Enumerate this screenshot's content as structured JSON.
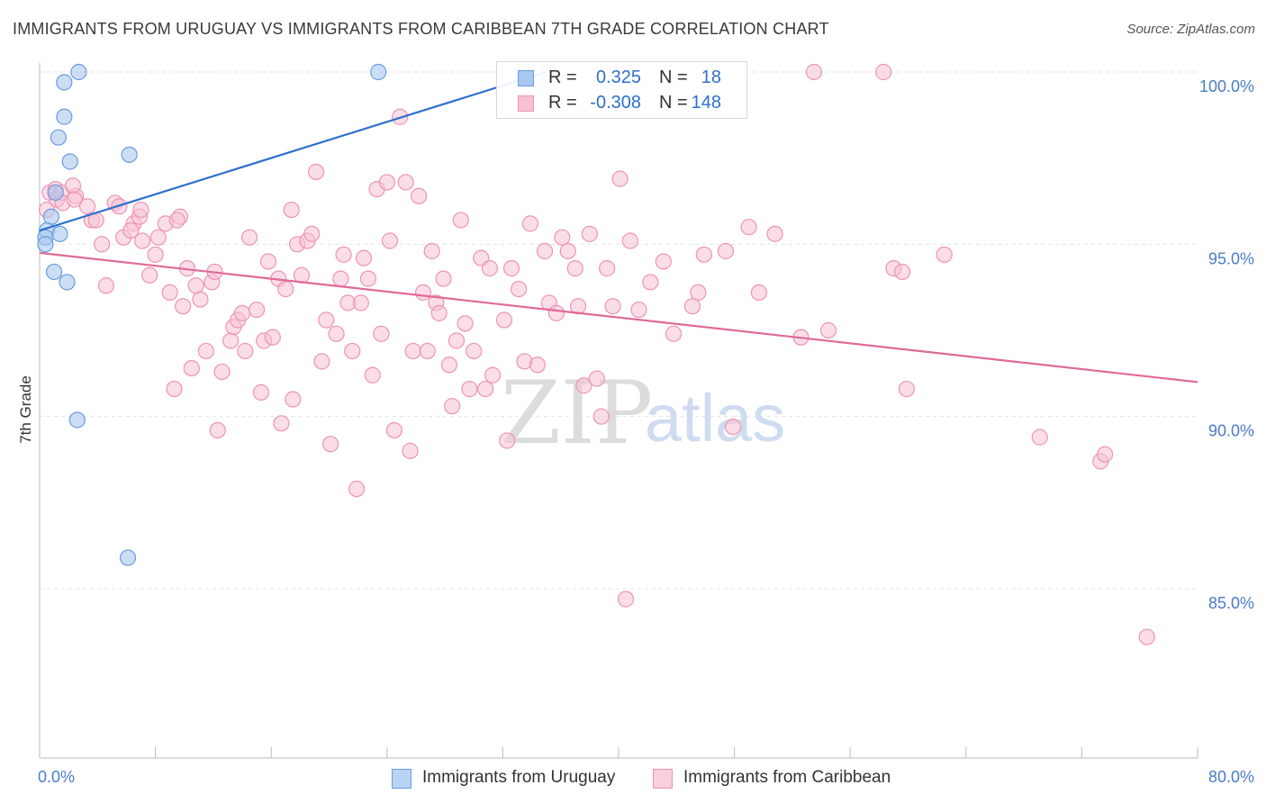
{
  "header": {
    "title": "IMMIGRANTS FROM URUGUAY VS IMMIGRANTS FROM CARIBBEAN 7TH GRADE CORRELATION CHART",
    "source": "Source: ZipAtlas.com"
  },
  "watermark": {
    "zip": "ZIP",
    "atlas": "atlas"
  },
  "legend": {
    "rows": [
      {
        "r_label": "R =",
        "r_value": "0.325",
        "n_label": "N =",
        "n_value": "18"
      },
      {
        "r_label": "R =",
        "r_value": "-0.308",
        "n_label": "N =",
        "n_value": "148"
      }
    ]
  },
  "bottom_legend": {
    "uruguay": "Immigrants from Uruguay",
    "caribbean": "Immigrants from Caribbean"
  },
  "colors": {
    "uruguay_fill": "#a9c8f0",
    "uruguay_stroke": "#6b9be0",
    "uruguay_line": "#2e6fce",
    "caribbean_fill": "#f7c1d3",
    "caribbean_stroke": "#ee94b3",
    "caribbean_line": "#e06a97",
    "tick_text": "#4a7cc9",
    "grid": "#e3e3e3"
  },
  "chart_data": {
    "type": "scatter",
    "title": "IMMIGRANTS FROM URUGUAY VS IMMIGRANTS FROM CARIBBEAN 7TH GRADE CORRELATION CHART",
    "xlabel": "",
    "ylabel": "7th Grade",
    "xlim": [
      0,
      80
    ],
    "ylim": [
      80.5,
      100.8
    ],
    "x_tick_labels": [
      "0.0%",
      "80.0%"
    ],
    "y_ticks": [
      85,
      90,
      95,
      100
    ],
    "y_tick_labels": [
      "85.0%",
      "90.0%",
      "95.0%",
      "100.0%"
    ],
    "grid": true,
    "legend_position": "top-center",
    "series": [
      {
        "name": "Immigrants from Uruguay",
        "r": 0.325,
        "n": 18,
        "trend": [
          [
            0.0,
            95.4
          ],
          [
            35.0,
            100.0
          ]
        ],
        "points": [
          [
            2.7,
            100.0
          ],
          [
            1.7,
            99.7
          ],
          [
            1.7,
            98.7
          ],
          [
            1.3,
            98.1
          ],
          [
            2.1,
            97.4
          ],
          [
            6.2,
            97.6
          ],
          [
            23.4,
            100.0
          ],
          [
            1.1,
            96.5
          ],
          [
            0.8,
            95.8
          ],
          [
            0.5,
            95.4
          ],
          [
            0.4,
            95.2
          ],
          [
            0.4,
            95.0
          ],
          [
            1.4,
            95.3
          ],
          [
            1.0,
            94.2
          ],
          [
            1.9,
            93.9
          ],
          [
            2.6,
            89.9
          ],
          [
            6.1,
            85.9
          ],
          [
            35.1,
            100.0
          ]
        ]
      },
      {
        "name": "Immigrants from Caribbean",
        "r": -0.308,
        "n": 148,
        "trend": [
          [
            0.0,
            94.75
          ],
          [
            80.0,
            91.0
          ]
        ],
        "points": [
          [
            0.5,
            96.0
          ],
          [
            0.7,
            96.5
          ],
          [
            1.1,
            96.6
          ],
          [
            1.2,
            96.3
          ],
          [
            1.5,
            96.5
          ],
          [
            1.6,
            96.2
          ],
          [
            2.5,
            96.4
          ],
          [
            2.3,
            96.7
          ],
          [
            3.3,
            96.1
          ],
          [
            3.6,
            95.7
          ],
          [
            3.9,
            95.7
          ],
          [
            4.3,
            95.0
          ],
          [
            4.6,
            93.8
          ],
          [
            5.2,
            96.2
          ],
          [
            5.5,
            96.1
          ],
          [
            5.8,
            95.2
          ],
          [
            6.5,
            95.6
          ],
          [
            6.3,
            95.4
          ],
          [
            6.9,
            95.8
          ],
          [
            7.0,
            96.0
          ],
          [
            7.1,
            95.1
          ],
          [
            7.6,
            94.1
          ],
          [
            8.0,
            94.7
          ],
          [
            8.2,
            95.2
          ],
          [
            8.7,
            95.6
          ],
          [
            9.0,
            93.6
          ],
          [
            9.3,
            90.8
          ],
          [
            9.7,
            95.8
          ],
          [
            9.9,
            93.2
          ],
          [
            10.2,
            94.3
          ],
          [
            10.5,
            91.4
          ],
          [
            10.8,
            93.8
          ],
          [
            11.1,
            93.4
          ],
          [
            11.5,
            91.9
          ],
          [
            11.9,
            93.9
          ],
          [
            12.1,
            94.2
          ],
          [
            12.3,
            89.6
          ],
          [
            12.6,
            91.3
          ],
          [
            13.2,
            92.2
          ],
          [
            13.4,
            92.6
          ],
          [
            13.7,
            92.8
          ],
          [
            14.0,
            93.0
          ],
          [
            14.2,
            91.9
          ],
          [
            14.5,
            95.2
          ],
          [
            15.0,
            93.1
          ],
          [
            15.3,
            90.7
          ],
          [
            15.5,
            92.2
          ],
          [
            15.8,
            94.5
          ],
          [
            16.1,
            92.3
          ],
          [
            16.5,
            94.0
          ],
          [
            16.7,
            89.8
          ],
          [
            17.0,
            93.7
          ],
          [
            17.4,
            96.0
          ],
          [
            17.5,
            90.5
          ],
          [
            17.8,
            95.0
          ],
          [
            18.1,
            94.1
          ],
          [
            18.5,
            95.1
          ],
          [
            18.8,
            95.3
          ],
          [
            19.1,
            97.1
          ],
          [
            19.5,
            91.6
          ],
          [
            19.8,
            92.8
          ],
          [
            20.1,
            89.2
          ],
          [
            20.5,
            92.4
          ],
          [
            20.8,
            94.0
          ],
          [
            21.0,
            94.7
          ],
          [
            21.3,
            93.3
          ],
          [
            21.6,
            91.9
          ],
          [
            21.9,
            87.9
          ],
          [
            22.2,
            93.3
          ],
          [
            22.4,
            94.6
          ],
          [
            22.7,
            94.0
          ],
          [
            23.0,
            91.2
          ],
          [
            23.3,
            96.6
          ],
          [
            23.6,
            92.4
          ],
          [
            24.0,
            96.8
          ],
          [
            24.2,
            95.1
          ],
          [
            24.5,
            89.6
          ],
          [
            24.9,
            98.7
          ],
          [
            25.3,
            96.8
          ],
          [
            25.6,
            89.0
          ],
          [
            25.8,
            91.9
          ],
          [
            26.2,
            96.4
          ],
          [
            26.5,
            93.6
          ],
          [
            26.8,
            91.9
          ],
          [
            27.1,
            94.8
          ],
          [
            27.4,
            93.3
          ],
          [
            27.6,
            93.0
          ],
          [
            27.9,
            94.0
          ],
          [
            28.3,
            91.5
          ],
          [
            28.5,
            90.3
          ],
          [
            28.8,
            92.2
          ],
          [
            29.1,
            95.7
          ],
          [
            29.4,
            92.7
          ],
          [
            29.7,
            90.8
          ],
          [
            30.0,
            91.9
          ],
          [
            30.5,
            94.6
          ],
          [
            30.8,
            90.8
          ],
          [
            31.1,
            94.3
          ],
          [
            31.3,
            91.2
          ],
          [
            32.1,
            92.8
          ],
          [
            32.3,
            89.3
          ],
          [
            32.6,
            94.3
          ],
          [
            33.1,
            93.7
          ],
          [
            33.5,
            91.6
          ],
          [
            33.9,
            95.6
          ],
          [
            34.4,
            91.5
          ],
          [
            34.9,
            94.8
          ],
          [
            35.2,
            93.3
          ],
          [
            35.7,
            93.0
          ],
          [
            36.1,
            95.2
          ],
          [
            36.5,
            94.8
          ],
          [
            37.0,
            94.3
          ],
          [
            37.2,
            93.2
          ],
          [
            37.6,
            90.9
          ],
          [
            38.0,
            95.3
          ],
          [
            38.5,
            91.1
          ],
          [
            38.8,
            90.0
          ],
          [
            39.2,
            94.3
          ],
          [
            39.6,
            93.2
          ],
          [
            40.1,
            96.9
          ],
          [
            40.5,
            84.7
          ],
          [
            40.8,
            95.1
          ],
          [
            41.4,
            93.1
          ],
          [
            42.2,
            93.9
          ],
          [
            43.1,
            94.5
          ],
          [
            43.8,
            92.4
          ],
          [
            45.1,
            93.2
          ],
          [
            45.5,
            93.6
          ],
          [
            45.9,
            94.7
          ],
          [
            47.4,
            94.8
          ],
          [
            47.9,
            89.7
          ],
          [
            49.0,
            95.5
          ],
          [
            49.7,
            93.6
          ],
          [
            50.8,
            95.3
          ],
          [
            52.6,
            92.3
          ],
          [
            53.5,
            100.0
          ],
          [
            54.5,
            92.5
          ],
          [
            58.3,
            100.0
          ],
          [
            59.0,
            94.3
          ],
          [
            59.6,
            94.2
          ],
          [
            59.9,
            90.8
          ],
          [
            62.5,
            94.7
          ],
          [
            69.1,
            89.4
          ],
          [
            73.3,
            88.7
          ],
          [
            73.6,
            88.9
          ],
          [
            76.5,
            83.6
          ],
          [
            2.4,
            96.3
          ],
          [
            9.5,
            95.7
          ]
        ]
      }
    ]
  }
}
